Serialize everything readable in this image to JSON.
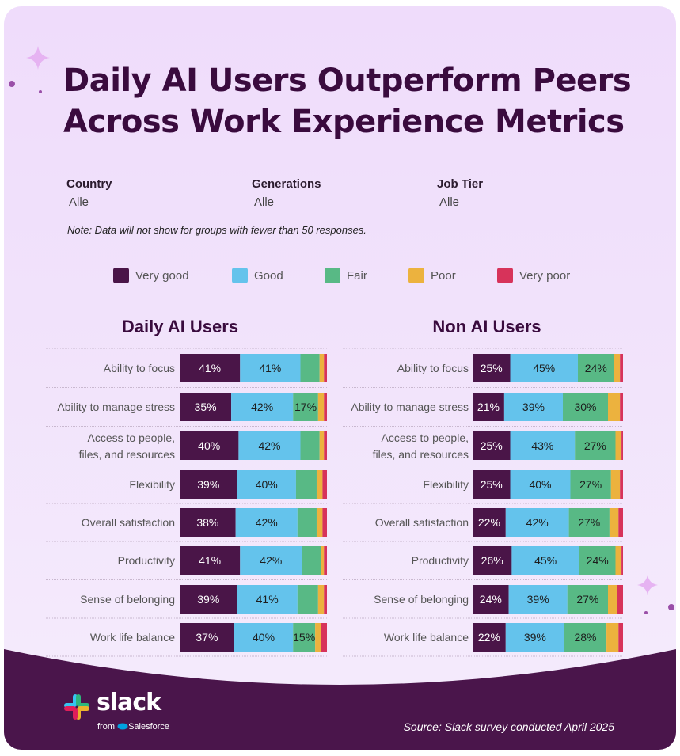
{
  "title": "Daily AI Users Outperform Peers Across Work Experience Metrics",
  "filters": [
    {
      "label": "Country",
      "value": "Alle"
    },
    {
      "label": "Generations",
      "value": "Alle"
    },
    {
      "label": "Job Tier",
      "value": "Alle"
    }
  ],
  "note": "Note: Data will not show for groups with fewer than 50 responses.",
  "legend": [
    {
      "label": "Very good",
      "color": "#4a1548"
    },
    {
      "label": "Good",
      "color": "#64c3ec"
    },
    {
      "label": "Fair",
      "color": "#58b985"
    },
    {
      "label": "Poor",
      "color": "#ecb23e"
    },
    {
      "label": "Very poor",
      "color": "#d7335a"
    }
  ],
  "source": "Source: Slack survey conducted April 2025",
  "brand": {
    "word": "slack",
    "from_prefix": "from",
    "from_brand": "Salesforce"
  },
  "chart_data": [
    {
      "type": "bar",
      "stacked": true,
      "orientation": "horizontal",
      "title": "Daily AI Users",
      "categories": [
        "Ability to focus",
        "Ability to manage stress",
        "Access to people, files, and resources",
        "Flexibility",
        "Overall satisfaction",
        "Productivity",
        "Sense of belonging",
        "Work life balance"
      ],
      "series": [
        {
          "name": "Very good",
          "values": [
            41,
            35,
            40,
            39,
            38,
            41,
            39,
            37
          ]
        },
        {
          "name": "Good",
          "values": [
            41,
            42,
            42,
            40,
            42,
            42,
            41,
            40
          ]
        },
        {
          "name": "Fair",
          "values": [
            13,
            17,
            13,
            14,
            13,
            13,
            14,
            15
          ]
        },
        {
          "name": "Poor",
          "values": [
            3,
            4,
            3,
            4,
            4,
            2,
            4,
            4
          ]
        },
        {
          "name": "Very poor",
          "values": [
            2,
            2,
            2,
            3,
            3,
            2,
            2,
            4
          ]
        }
      ],
      "xlim": [
        0,
        100
      ]
    },
    {
      "type": "bar",
      "stacked": true,
      "orientation": "horizontal",
      "title": "Non AI Users",
      "categories": [
        "Ability to focus",
        "Ability to manage stress",
        "Access to people, files, and resources",
        "Flexibility",
        "Overall satisfaction",
        "Productivity",
        "Sense of belonging",
        "Work life balance"
      ],
      "series": [
        {
          "name": "Very good",
          "values": [
            25,
            21,
            25,
            25,
            22,
            26,
            24,
            22
          ]
        },
        {
          "name": "Good",
          "values": [
            45,
            39,
            43,
            40,
            42,
            45,
            39,
            39
          ]
        },
        {
          "name": "Fair",
          "values": [
            24,
            30,
            27,
            27,
            27,
            24,
            27,
            28
          ]
        },
        {
          "name": "Poor",
          "values": [
            4,
            8,
            4,
            6,
            6,
            4,
            6,
            8
          ]
        },
        {
          "name": "Very poor",
          "values": [
            2,
            2,
            1,
            2,
            3,
            1,
            4,
            3
          ]
        }
      ],
      "xlim": [
        0,
        100
      ]
    }
  ]
}
